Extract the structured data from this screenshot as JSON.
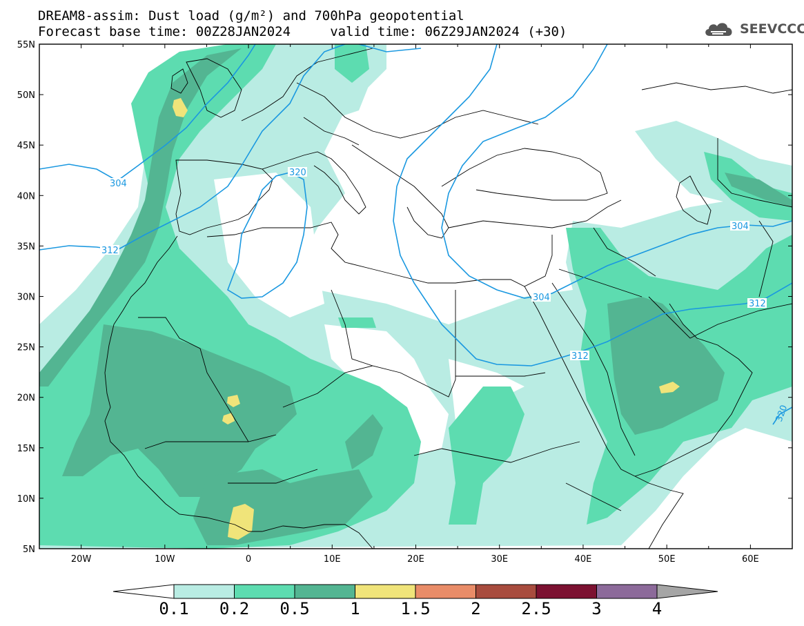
{
  "header": {
    "line1": "DREAM8-assim: Dust load (g/m²) and 700hPa geopotential",
    "line2": "Forecast base time: 00Z28JAN2024     valid time: 06Z29JAN2024 (+30)"
  },
  "logo": {
    "text": "SEEVCCC",
    "icon": "cloud-icon"
  },
  "map": {
    "lat_range": [
      5,
      55
    ],
    "lon_range": [
      -25,
      65
    ],
    "lat_ticks": [
      "55N",
      "50N",
      "45N",
      "40N",
      "35N",
      "30N",
      "25N",
      "20N",
      "15N",
      "10N",
      "5N"
    ],
    "lon_ticks": [
      "20W",
      "10W",
      "0",
      "10E",
      "20E",
      "30E",
      "40E",
      "50E",
      "60E"
    ],
    "contour_labels": [
      "304",
      "312",
      "320",
      "304",
      "312",
      "304",
      "312",
      "320"
    ]
  },
  "colorbar": {
    "levels": [
      "0.1",
      "0.2",
      "0.5",
      "1",
      "1.5",
      "2",
      "2.5",
      "3",
      "4"
    ],
    "colors": [
      "#ffffff",
      "#b9ece3",
      "#5ddcb0",
      "#53b592",
      "#f0e47a",
      "#e98c68",
      "#a84c3e",
      "#7c1131",
      "#8c6a9a",
      "#a5a5a5"
    ]
  }
}
